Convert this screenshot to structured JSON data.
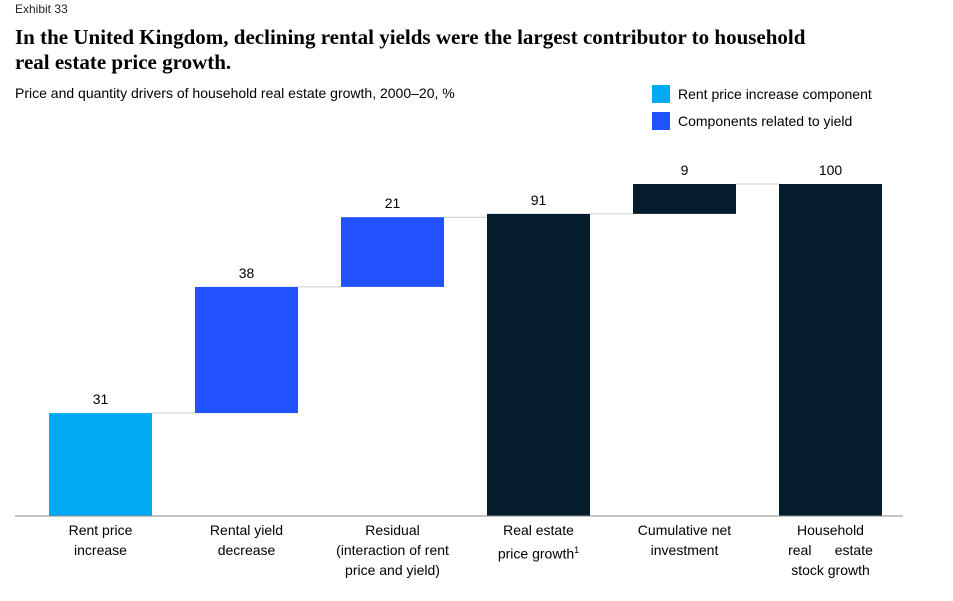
{
  "exhibit": "Exhibit 33",
  "title": "In the United Kingdom, declining rental yields were the largest contributor to household real estate price growth.",
  "subtitle": "Price and quantity drivers of household real estate growth, 2000–20, %",
  "legend": [
    {
      "label": "Rent price increase component",
      "color": "#00A9F4"
    },
    {
      "label": "Components related to yield",
      "color": "#2251FF"
    }
  ],
  "chart_data": {
    "type": "bar",
    "subtype": "waterfall",
    "categories": [
      {
        "lines": [
          "Rent price",
          "increase"
        ]
      },
      {
        "lines": [
          "Rental yield",
          "decrease"
        ]
      },
      {
        "lines": [
          "Residual",
          "(interaction of rent",
          "price and yield)"
        ]
      },
      {
        "lines": [
          "Real estate",
          "price growth"
        ],
        "footnote": "1"
      },
      {
        "lines": [
          "Cumulative net",
          "investment"
        ]
      },
      {
        "lines": [
          "Household",
          "real      estate",
          "stock growth"
        ]
      }
    ],
    "values": [
      31,
      38,
      21,
      91,
      9,
      100
    ],
    "kinds": [
      "delta",
      "delta",
      "delta",
      "total",
      "delta",
      "total"
    ],
    "colors": [
      "#00A9F4",
      "#2251FF",
      "#2251FF",
      "#051C2C",
      "#051C2C",
      "#051C2C"
    ],
    "ylim": [
      0,
      100
    ],
    "grid": false
  }
}
